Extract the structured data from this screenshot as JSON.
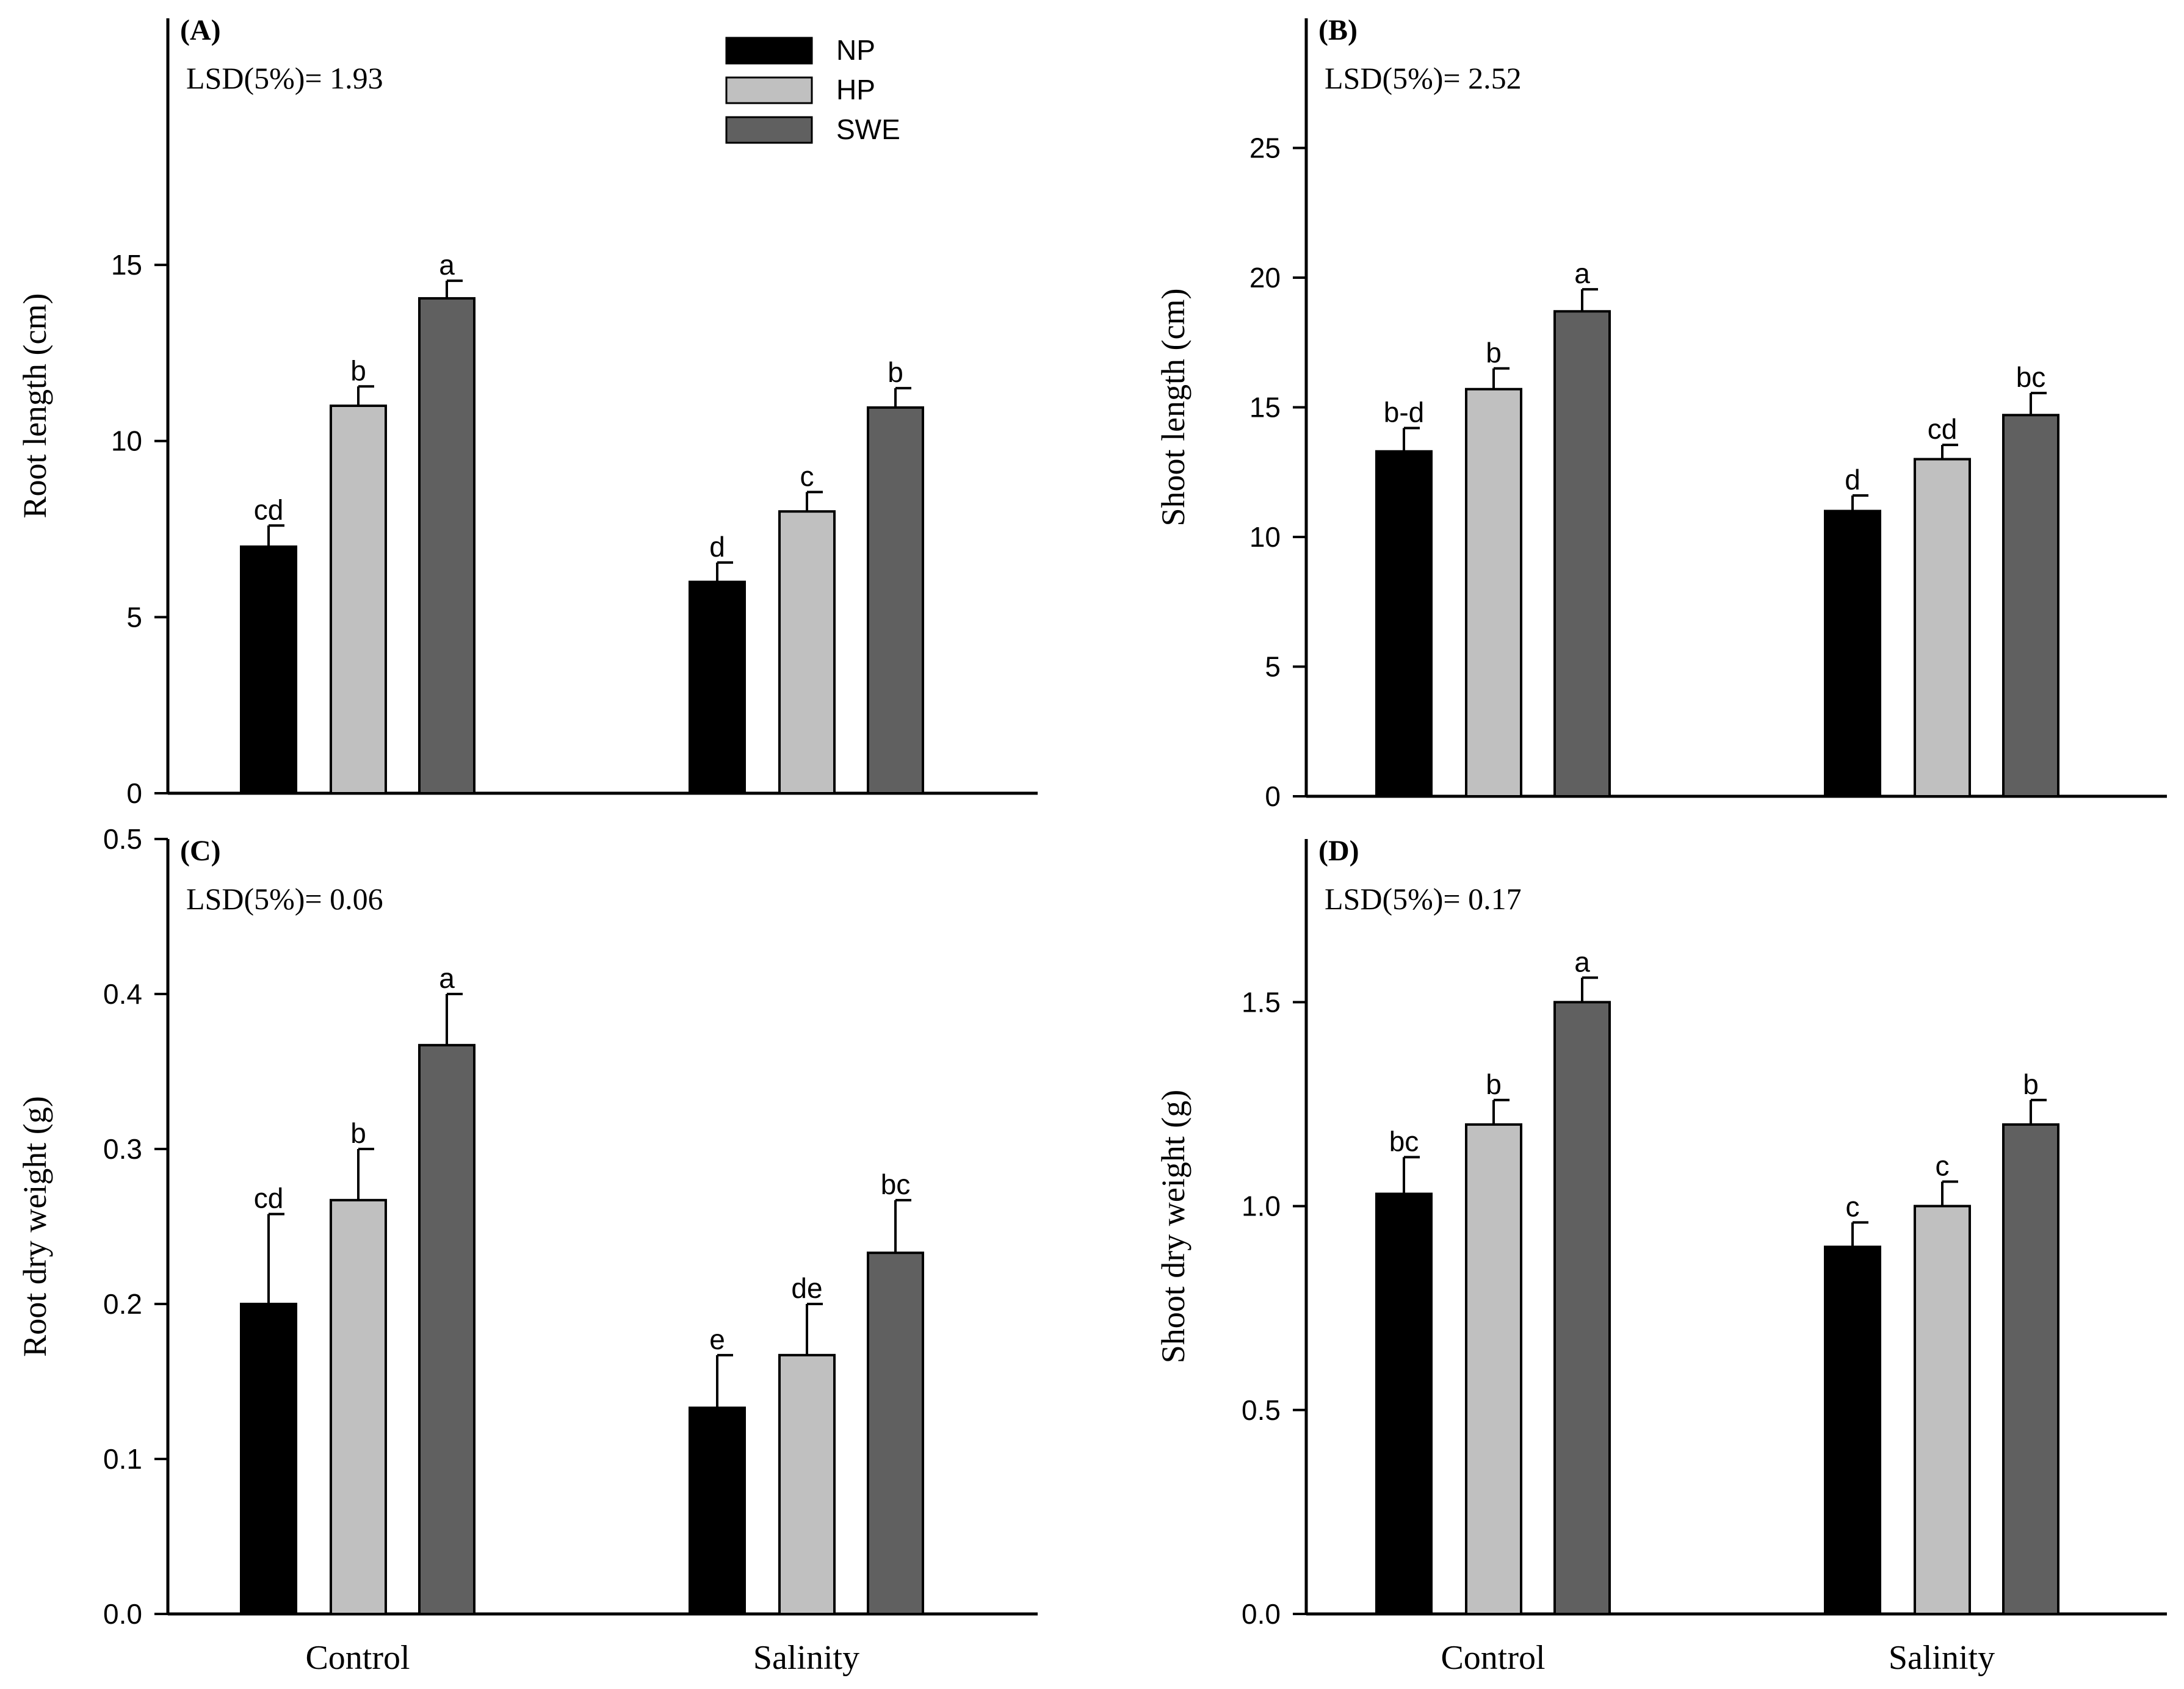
{
  "figure": {
    "legend": [
      "NP",
      "HP",
      "SWE"
    ],
    "colors": {
      "NP": "#000000",
      "HP": "#c0c0c0",
      "SWE": "#606060"
    }
  },
  "chart_data": [
    {
      "type": "bar",
      "panel": "(A)",
      "lsd": "LSD(5%)= 1.93",
      "ylabel": "Root length (cm)",
      "xlabel": "",
      "categories": [
        "Control",
        "Salinity"
      ],
      "show_category_labels": false,
      "show_legend": true,
      "ylim": [
        0,
        22
      ],
      "yticks": [
        0,
        5,
        10,
        15
      ],
      "ytick_labels": [
        "0",
        "5",
        "10",
        "15"
      ],
      "series": [
        {
          "name": "NP",
          "values": [
            7.0,
            6.0
          ],
          "errors": [
            0.6,
            0.55
          ],
          "letters": [
            "cd",
            "d"
          ]
        },
        {
          "name": "HP",
          "values": [
            11.0,
            8.0
          ],
          "errors": [
            0.55,
            0.55
          ],
          "letters": [
            "b",
            "c"
          ]
        },
        {
          "name": "SWE",
          "values": [
            14.05,
            10.95
          ],
          "errors": [
            0.5,
            0.55
          ],
          "letters": [
            "a",
            "b"
          ]
        }
      ]
    },
    {
      "type": "bar",
      "panel": "(B)",
      "lsd": "LSD(5%)= 2.52",
      "ylabel": "Shoot length (cm)",
      "xlabel": "",
      "categories": [
        "Control",
        "Salinity"
      ],
      "show_category_labels": false,
      "show_legend": false,
      "ylim": [
        0,
        30
      ],
      "yticks": [
        0,
        5,
        10,
        15,
        20,
        25
      ],
      "ytick_labels": [
        "0",
        "5",
        "10",
        "15",
        "20",
        "25"
      ],
      "series": [
        {
          "name": "NP",
          "values": [
            13.3,
            11.0
          ],
          "errors": [
            0.9,
            0.6
          ],
          "letters": [
            "b-d",
            "d"
          ]
        },
        {
          "name": "HP",
          "values": [
            15.7,
            13.0
          ],
          "errors": [
            0.8,
            0.55
          ],
          "letters": [
            "b",
            "cd"
          ]
        },
        {
          "name": "SWE",
          "values": [
            18.7,
            14.7
          ],
          "errors": [
            0.85,
            0.85
          ],
          "letters": [
            "a",
            "bc"
          ]
        }
      ]
    },
    {
      "type": "bar",
      "panel": "(C)",
      "lsd": "LSD(5%)= 0.06",
      "ylabel": "Root dry weight (g)",
      "xlabel": "",
      "categories": [
        "Control",
        "Salinity"
      ],
      "show_category_labels": true,
      "show_legend": false,
      "ylim": [
        0,
        0.5
      ],
      "yticks": [
        0,
        0.1,
        0.2,
        0.3,
        0.4,
        0.5
      ],
      "ytick_labels": [
        "0.0",
        "0.1",
        "0.2",
        "0.3",
        "0.4",
        "0.5"
      ],
      "series": [
        {
          "name": "NP",
          "values": [
            0.2,
            0.133
          ],
          "errors": [
            0.058,
            0.034
          ],
          "letters": [
            "cd",
            "e"
          ]
        },
        {
          "name": "HP",
          "values": [
            0.267,
            0.167
          ],
          "errors": [
            0.033,
            0.033
          ],
          "letters": [
            "b",
            "de"
          ]
        },
        {
          "name": "SWE",
          "values": [
            0.367,
            0.233
          ],
          "errors": [
            0.033,
            0.034
          ],
          "letters": [
            "a",
            "bc"
          ]
        }
      ]
    },
    {
      "type": "bar",
      "panel": "(D)",
      "lsd": "LSD(5%)= 0.17",
      "ylabel": "Shoot dry weight (g)",
      "xlabel": "",
      "categories": [
        "Control",
        "Salinity"
      ],
      "show_category_labels": true,
      "show_legend": false,
      "ylim": [
        0,
        1.9
      ],
      "yticks": [
        0,
        0.5,
        1.0,
        1.5
      ],
      "ytick_labels": [
        "0.0",
        "0.5",
        "1.0",
        "1.5"
      ],
      "series": [
        {
          "name": "NP",
          "values": [
            1.03,
            0.9
          ],
          "errors": [
            0.09,
            0.06
          ],
          "letters": [
            "bc",
            "c"
          ]
        },
        {
          "name": "HP",
          "values": [
            1.2,
            1.0
          ],
          "errors": [
            0.06,
            0.06
          ],
          "letters": [
            "b",
            "c"
          ]
        },
        {
          "name": "SWE",
          "values": [
            1.5,
            1.2
          ],
          "errors": [
            0.06,
            0.06
          ],
          "letters": [
            "a",
            "b"
          ]
        }
      ]
    }
  ]
}
